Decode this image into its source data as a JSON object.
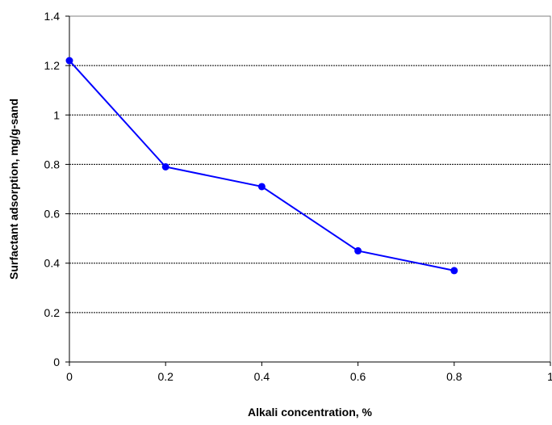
{
  "chart_data": {
    "type": "line",
    "xlabel": "Alkali concentration, %",
    "ylabel": "Surfactant adsorption, mg/g-sand",
    "xlim": [
      0,
      1
    ],
    "ylim": [
      0,
      1.4
    ],
    "x_ticks": [
      "0",
      "0.2",
      "0.4",
      "0.6",
      "0.8",
      "1"
    ],
    "y_ticks": [
      "0",
      "0.2",
      "0.4",
      "0.6",
      "0.8",
      "1",
      "1.2",
      "1.4"
    ],
    "grid": "horizontal",
    "legend": "none",
    "series": [
      {
        "color": "#0000ff",
        "marker": "circle",
        "x": [
          0,
          0.2,
          0.4,
          0.6,
          0.8
        ],
        "y": [
          1.22,
          0.79,
          0.71,
          0.45,
          0.37
        ]
      }
    ]
  }
}
